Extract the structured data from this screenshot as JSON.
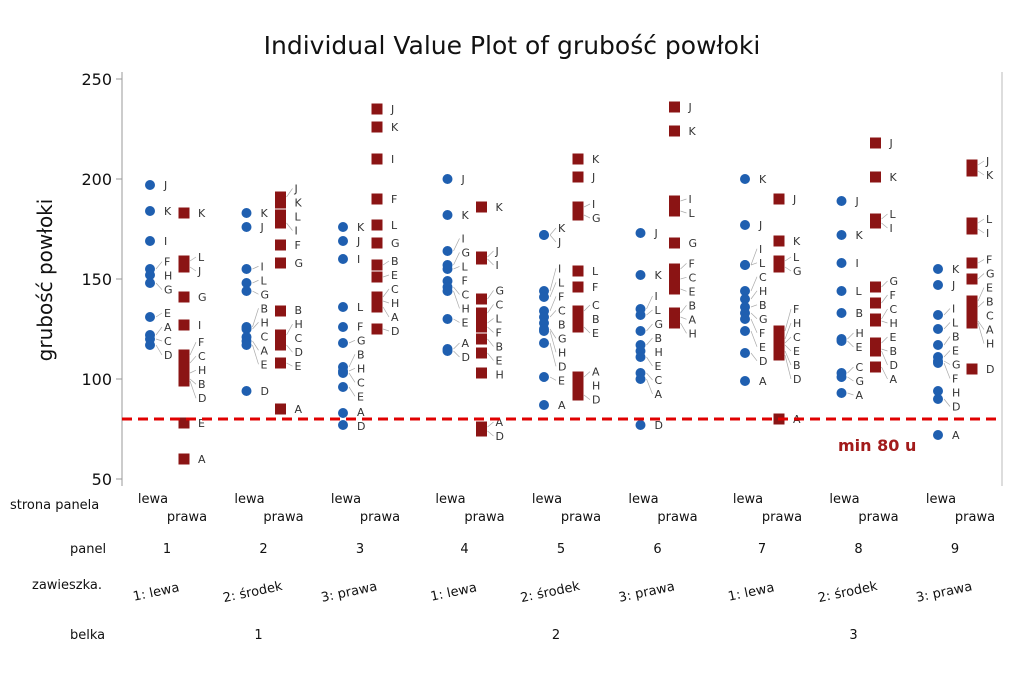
{
  "chart_data": {
    "type": "scatter",
    "title": "Individual Value Plot of grubość powłoki",
    "ylabel": "grubość powłoki",
    "ylim": [
      50,
      250
    ],
    "yticks": [
      50,
      100,
      150,
      200,
      250
    ],
    "reference_line": {
      "value": 80,
      "label": "min 80 u",
      "color": "#e00000"
    },
    "row_labels": {
      "strona": "strona panela",
      "panel": "panel",
      "zawieszka": "zawieszka.",
      "belka": "belka"
    },
    "strona": [
      "lewa",
      "prawa"
    ],
    "colors": {
      "lewa": "#1f5fb0",
      "prawa": "#8b1414"
    },
    "belka": [
      "1",
      "2",
      "3"
    ],
    "panels": [
      {
        "panel": "1",
        "zawieszka": "1: lewa",
        "lewa": [
          [
            "J",
            197
          ],
          [
            "K",
            184
          ],
          [
            "I",
            169
          ],
          [
            "F",
            155
          ],
          [
            "H",
            152
          ],
          [
            "G",
            148
          ],
          [
            "E",
            131
          ],
          [
            "A",
            122
          ],
          [
            "C",
            120
          ],
          [
            "D",
            117
          ]
        ],
        "prawa": [
          [
            "K",
            183
          ],
          [
            "L",
            159
          ],
          [
            "J",
            156
          ],
          [
            "G",
            141
          ],
          [
            "I",
            127
          ],
          [
            "F",
            112
          ],
          [
            "C",
            108
          ],
          [
            "H",
            103
          ],
          [
            "B",
            100
          ],
          [
            "D",
            99
          ],
          [
            "E",
            78
          ],
          [
            "A",
            60
          ]
        ]
      },
      {
        "panel": "2",
        "zawieszka": "2: środek",
        "lewa": [
          [
            "K",
            183
          ],
          [
            "J",
            176
          ],
          [
            "I",
            155
          ],
          [
            "L",
            148
          ],
          [
            "G",
            144
          ],
          [
            "B",
            126
          ],
          [
            "H",
            125
          ],
          [
            "C",
            121
          ],
          [
            "A",
            119
          ],
          [
            "E",
            117
          ],
          [
            "D",
            94
          ]
        ],
        "prawa": [
          [
            "J",
            191
          ],
          [
            "K",
            188
          ],
          [
            "L",
            182
          ],
          [
            "I",
            178
          ],
          [
            "F",
            167
          ],
          [
            "G",
            158
          ],
          [
            "B",
            134
          ],
          [
            "H",
            122
          ],
          [
            "C",
            121
          ],
          [
            "D",
            117
          ],
          [
            "E",
            108
          ],
          [
            "A",
            85
          ]
        ]
      },
      {
        "panel": "3",
        "zawieszka": "3: prawa",
        "lewa": [
          [
            "K",
            176
          ],
          [
            "J",
            169
          ],
          [
            "I",
            160
          ],
          [
            "L",
            136
          ],
          [
            "F",
            126
          ],
          [
            "G",
            118
          ],
          [
            "B",
            106
          ],
          [
            "H",
            104
          ],
          [
            "C",
            103
          ],
          [
            "E",
            96
          ],
          [
            "A",
            83
          ],
          [
            "D",
            77
          ]
        ],
        "prawa": [
          [
            "J",
            235
          ],
          [
            "K",
            226
          ],
          [
            "I",
            210
          ],
          [
            "F",
            190
          ],
          [
            "L",
            177
          ],
          [
            "G",
            168
          ],
          [
            "B",
            157
          ],
          [
            "E",
            151
          ],
          [
            "C",
            141
          ],
          [
            "H",
            139
          ],
          [
            "A",
            136
          ],
          [
            "D",
            125
          ]
        ]
      },
      {
        "panel": "4",
        "zawieszka": "1: lewa",
        "lewa": [
          [
            "J",
            200
          ],
          [
            "K",
            182
          ],
          [
            "I",
            164
          ],
          [
            "G",
            157
          ],
          [
            "L",
            155
          ],
          [
            "F",
            149
          ],
          [
            "C",
            146
          ],
          [
            "H",
            144
          ],
          [
            "E",
            130
          ],
          [
            "A",
            115
          ],
          [
            "D",
            114
          ]
        ],
        "prawa": [
          [
            "K",
            186
          ],
          [
            "J",
            161
          ],
          [
            "I",
            160
          ],
          [
            "G",
            140
          ],
          [
            "C",
            133
          ],
          [
            "L",
            128
          ],
          [
            "F",
            126
          ],
          [
            "B",
            120
          ],
          [
            "E",
            113
          ],
          [
            "H",
            103
          ],
          [
            "A",
            76
          ],
          [
            "D",
            74
          ]
        ]
      },
      {
        "panel": "5",
        "zawieszka": "2: środek",
        "lewa": [
          [
            "K",
            172
          ],
          [
            "J",
            172
          ],
          [
            "I",
            144
          ],
          [
            "L",
            141
          ],
          [
            "F",
            134
          ],
          [
            "C",
            131
          ],
          [
            "B",
            128
          ],
          [
            "G",
            125
          ],
          [
            "H",
            124
          ],
          [
            "D",
            118
          ],
          [
            "E",
            101
          ],
          [
            "A",
            87
          ]
        ],
        "prawa": [
          [
            "K",
            210
          ],
          [
            "J",
            201
          ],
          [
            "I",
            186
          ],
          [
            "G",
            182
          ],
          [
            "L",
            154
          ],
          [
            "F",
            146
          ],
          [
            "C",
            134
          ],
          [
            "B",
            130
          ],
          [
            "E",
            126
          ],
          [
            "A",
            101
          ],
          [
            "H",
            97
          ],
          [
            "D",
            92
          ]
        ]
      },
      {
        "panel": "6",
        "zawieszka": "3: prawa",
        "lewa": [
          [
            "J",
            173
          ],
          [
            "K",
            152
          ],
          [
            "I",
            135
          ],
          [
            "L",
            132
          ],
          [
            "G",
            124
          ],
          [
            "B",
            117
          ],
          [
            "H",
            114
          ],
          [
            "E",
            111
          ],
          [
            "C",
            103
          ],
          [
            "A",
            100
          ],
          [
            "D",
            77
          ]
        ],
        "prawa": [
          [
            "J",
            236
          ],
          [
            "K",
            224
          ],
          [
            "I",
            189
          ],
          [
            "L",
            184
          ],
          [
            "G",
            168
          ],
          [
            "F",
            155
          ],
          [
            "C",
            150
          ],
          [
            "E",
            145
          ],
          [
            "B",
            133
          ],
          [
            "A",
            131
          ],
          [
            "H",
            128
          ]
        ]
      },
      {
        "panel": "7",
        "zawieszka": "1: lewa",
        "lewa": [
          [
            "K",
            200
          ],
          [
            "J",
            177
          ],
          [
            "I",
            157
          ],
          [
            "L",
            157
          ],
          [
            "C",
            144
          ],
          [
            "H",
            140
          ],
          [
            "B",
            136
          ],
          [
            "G",
            133
          ],
          [
            "F",
            130
          ],
          [
            "E",
            124
          ],
          [
            "D",
            113
          ],
          [
            "A",
            99
          ]
        ],
        "prawa": [
          [
            "J",
            190
          ],
          [
            "K",
            169
          ],
          [
            "L",
            159
          ],
          [
            "G",
            156
          ],
          [
            "F",
            124
          ],
          [
            "H",
            120
          ],
          [
            "C",
            118
          ],
          [
            "E",
            117
          ],
          [
            "B",
            114
          ],
          [
            "D",
            112
          ],
          [
            "A",
            80
          ]
        ]
      },
      {
        "panel": "8",
        "zawieszka": "2: środek",
        "lewa": [
          [
            "J",
            189
          ],
          [
            "K",
            172
          ],
          [
            "I",
            158
          ],
          [
            "L",
            144
          ],
          [
            "B",
            133
          ],
          [
            "H",
            120
          ],
          [
            "E",
            119
          ],
          [
            "C",
            103
          ],
          [
            "G",
            101
          ],
          [
            "A",
            93
          ]
        ],
        "prawa": [
          [
            "J",
            218
          ],
          [
            "K",
            201
          ],
          [
            "L",
            180
          ],
          [
            "I",
            178
          ],
          [
            "G",
            146
          ],
          [
            "F",
            138
          ],
          [
            "C",
            130
          ],
          [
            "H",
            129
          ],
          [
            "E",
            118
          ],
          [
            "B",
            115
          ],
          [
            "D",
            114
          ],
          [
            "A",
            106
          ]
        ]
      },
      {
        "panel": "9",
        "zawieszka": "3: prawa",
        "lewa": [
          [
            "K",
            155
          ],
          [
            "J",
            147
          ],
          [
            "I",
            132
          ],
          [
            "L",
            125
          ],
          [
            "B",
            117
          ],
          [
            "E",
            111
          ],
          [
            "G",
            109
          ],
          [
            "F",
            108
          ],
          [
            "H",
            94
          ],
          [
            "D",
            90
          ],
          [
            "A",
            72
          ]
        ],
        "prawa": [
          [
            "J",
            207
          ],
          [
            "K",
            204
          ],
          [
            "L",
            178
          ],
          [
            "I",
            175
          ],
          [
            "F",
            158
          ],
          [
            "G",
            150
          ],
          [
            "E",
            139
          ],
          [
            "B",
            136
          ],
          [
            "C",
            131
          ],
          [
            "A",
            129
          ],
          [
            "H",
            128
          ],
          [
            "D",
            105
          ]
        ]
      }
    ]
  }
}
